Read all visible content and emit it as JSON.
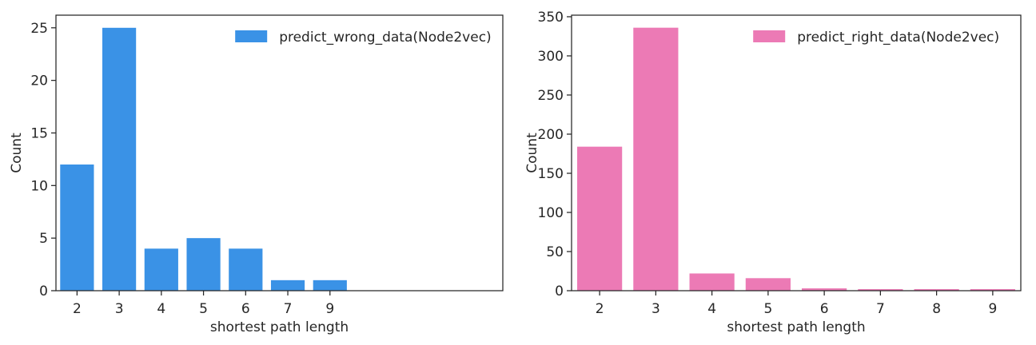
{
  "chart_data": [
    {
      "type": "bar",
      "categories": [
        "2",
        "3",
        "4",
        "5",
        "6",
        "7",
        "9"
      ],
      "values": [
        12,
        25,
        4,
        5,
        4,
        1,
        1
      ],
      "series": [
        {
          "name": "predict_wrong_data(Node2vec)",
          "values": [
            12,
            25,
            4,
            5,
            4,
            1,
            1
          ]
        }
      ],
      "xlabel": "shortest path length",
      "ylabel": "Count",
      "ylim": [
        0,
        26.2
      ],
      "yticks": [
        0,
        5,
        10,
        15,
        20,
        25
      ],
      "color": "#3a92e6",
      "legend": "upper right",
      "grid": false
    },
    {
      "type": "bar",
      "categories": [
        "2",
        "3",
        "4",
        "5",
        "6",
        "7",
        "8",
        "9"
      ],
      "values": [
        184,
        336,
        22,
        16,
        3,
        2,
        2,
        2
      ],
      "series": [
        {
          "name": "predict_right_data(Node2vec)",
          "values": [
            184,
            336,
            22,
            16,
            3,
            2,
            2,
            2
          ]
        }
      ],
      "xlabel": "shortest path length",
      "ylabel": "Count",
      "ylim": [
        0,
        352
      ],
      "yticks": [
        0,
        50,
        100,
        150,
        200,
        250,
        300,
        350
      ],
      "color": "#ec7ab5",
      "legend": "upper right",
      "grid": false
    }
  ]
}
